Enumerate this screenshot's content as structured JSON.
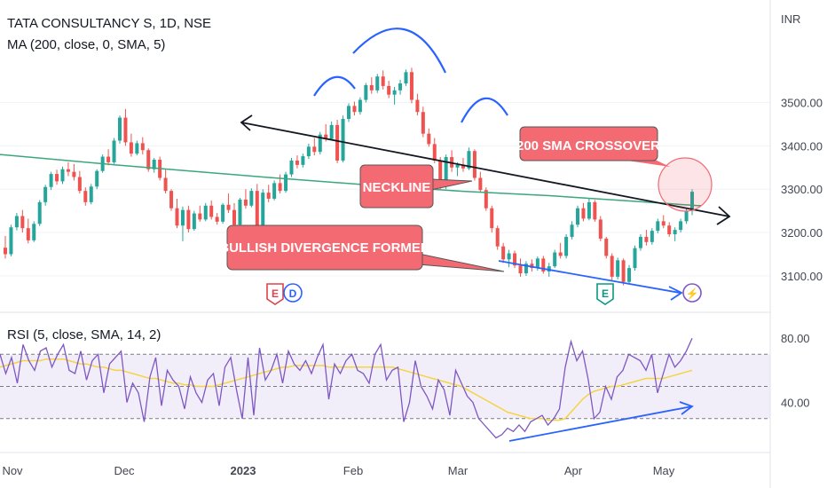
{
  "header": {
    "title": "TATA CONSULTANCY S, 1D, NSE",
    "ma_label": "MA (200, close, 0, SMA, 5)",
    "currency": "INR"
  },
  "rsi_panel": {
    "label": "RSI (5, close, SMA, 14, 2)"
  },
  "annotations": {
    "sma_crossover": "200 SMA CROSSOVER",
    "neckline": "NECKLINE",
    "bullish_divergence": "BULLISH DIVERGENCE FORMED"
  },
  "markers": [
    {
      "letter": "E",
      "color": "#e0424b",
      "index": 0
    },
    {
      "letter": "D",
      "color": "#2962ff",
      "index": 1
    },
    {
      "letter": "E",
      "color": "#089981",
      "index": 2
    },
    {
      "letter": "⚡",
      "color": "#7e57c2",
      "index": 3
    }
  ],
  "chart_data": [
    {
      "type": "candlestick",
      "title": "TATA CONSULTANCY S, 1D, NSE",
      "ylabel": "INR",
      "ylim": [
        3020,
        3720
      ],
      "y_ticks": [
        3100,
        3200,
        3300,
        3400,
        3500
      ],
      "y_tick_labels": [
        "3100.00",
        "3200.00",
        "3300.00",
        "3400.00",
        "3500.00"
      ],
      "x_tick_labels": [
        "Nov",
        "Dec",
        "2023",
        "Feb",
        "Mar",
        "Apr",
        "May"
      ],
      "candles": [
        [
          3165,
          3192,
          3140,
          3150
        ],
        [
          3150,
          3218,
          3145,
          3212
        ],
        [
          3212,
          3245,
          3205,
          3238
        ],
        [
          3238,
          3252,
          3200,
          3210
        ],
        [
          3210,
          3232,
          3175,
          3182
        ],
        [
          3182,
          3226,
          3178,
          3220
        ],
        [
          3220,
          3275,
          3215,
          3270
        ],
        [
          3270,
          3310,
          3262,
          3305
        ],
        [
          3305,
          3340,
          3298,
          3335
        ],
        [
          3335,
          3345,
          3310,
          3318
        ],
        [
          3318,
          3352,
          3312,
          3346
        ],
        [
          3346,
          3362,
          3330,
          3340
        ],
        [
          3340,
          3358,
          3320,
          3328
        ],
        [
          3328,
          3342,
          3290,
          3296
        ],
        [
          3296,
          3304,
          3262,
          3270
        ],
        [
          3270,
          3312,
          3265,
          3306
        ],
        [
          3306,
          3346,
          3300,
          3342
        ],
        [
          3342,
          3380,
          3338,
          3375
        ],
        [
          3375,
          3392,
          3355,
          3362
        ],
        [
          3362,
          3418,
          3358,
          3412
        ],
        [
          3412,
          3470,
          3405,
          3465
        ],
        [
          3465,
          3485,
          3400,
          3408
        ],
        [
          3408,
          3428,
          3375,
          3382
        ],
        [
          3382,
          3412,
          3378,
          3406
        ],
        [
          3406,
          3420,
          3380,
          3390
        ],
        [
          3390,
          3394,
          3340,
          3346
        ],
        [
          3346,
          3372,
          3338,
          3368
        ],
        [
          3368,
          3375,
          3320,
          3326
        ],
        [
          3326,
          3345,
          3290,
          3296
        ],
        [
          3296,
          3300,
          3250,
          3256
        ],
        [
          3256,
          3278,
          3210,
          3216
        ],
        [
          3216,
          3260,
          3180,
          3252
        ],
        [
          3252,
          3262,
          3200,
          3208
        ],
        [
          3208,
          3250,
          3204,
          3244
        ],
        [
          3244,
          3262,
          3225,
          3230
        ],
        [
          3230,
          3268,
          3226,
          3262
        ],
        [
          3262,
          3274,
          3230,
          3236
        ],
        [
          3236,
          3245,
          3218,
          3225
        ],
        [
          3225,
          3268,
          3220,
          3264
        ],
        [
          3264,
          3290,
          3245,
          3252
        ],
        [
          3252,
          3268,
          3212,
          3218
        ],
        [
          3218,
          3280,
          3214,
          3276
        ],
        [
          3276,
          3300,
          3255,
          3262
        ],
        [
          3262,
          3302,
          3258,
          3296
        ],
        [
          3296,
          3312,
          3200,
          3206
        ],
        [
          3206,
          3300,
          3200,
          3292
        ],
        [
          3292,
          3310,
          3270,
          3278
        ],
        [
          3278,
          3320,
          3274,
          3314
        ],
        [
          3314,
          3334,
          3290,
          3296
        ],
        [
          3296,
          3340,
          3292,
          3334
        ],
        [
          3334,
          3372,
          3328,
          3366
        ],
        [
          3366,
          3378,
          3348,
          3356
        ],
        [
          3356,
          3382,
          3350,
          3376
        ],
        [
          3376,
          3405,
          3370,
          3398
        ],
        [
          3398,
          3418,
          3378,
          3386
        ],
        [
          3386,
          3432,
          3380,
          3426
        ],
        [
          3426,
          3450,
          3410,
          3416
        ],
        [
          3416,
          3456,
          3412,
          3448
        ],
        [
          3448,
          3460,
          3360,
          3366
        ],
        [
          3366,
          3470,
          3362,
          3462
        ],
        [
          3462,
          3498,
          3455,
          3492
        ],
        [
          3492,
          3502,
          3470,
          3478
        ],
        [
          3478,
          3512,
          3472,
          3506
        ],
        [
          3506,
          3545,
          3500,
          3540
        ],
        [
          3540,
          3558,
          3520,
          3528
        ],
        [
          3528,
          3566,
          3522,
          3560
        ],
        [
          3560,
          3574,
          3530,
          3538
        ],
        [
          3538,
          3550,
          3510,
          3518
        ],
        [
          3518,
          3536,
          3495,
          3528
        ],
        [
          3528,
          3552,
          3518,
          3544
        ],
        [
          3544,
          3576,
          3538,
          3570
        ],
        [
          3570,
          3580,
          3498,
          3506
        ],
        [
          3506,
          3520,
          3470,
          3478
        ],
        [
          3478,
          3490,
          3420,
          3428
        ],
        [
          3428,
          3440,
          3398,
          3404
        ],
        [
          3404,
          3418,
          3360,
          3366
        ],
        [
          3366,
          3374,
          3300,
          3306
        ],
        [
          3306,
          3380,
          3300,
          3374
        ],
        [
          3374,
          3390,
          3340,
          3350
        ],
        [
          3350,
          3362,
          3330,
          3356
        ],
        [
          3356,
          3372,
          3340,
          3348
        ],
        [
          3348,
          3396,
          3344,
          3388
        ],
        [
          3388,
          3392,
          3320,
          3326
        ],
        [
          3326,
          3340,
          3292,
          3298
        ],
        [
          3298,
          3304,
          3250,
          3256
        ],
        [
          3256,
          3262,
          3200,
          3210
        ],
        [
          3210,
          3216,
          3160,
          3168
        ],
        [
          3168,
          3176,
          3130,
          3138
        ],
        [
          3138,
          3160,
          3120,
          3152
        ],
        [
          3152,
          3158,
          3118,
          3124
        ],
        [
          3124,
          3140,
          3098,
          3106
        ],
        [
          3106,
          3134,
          3100,
          3128
        ],
        [
          3128,
          3138,
          3110,
          3118
        ],
        [
          3118,
          3145,
          3112,
          3140
        ],
        [
          3140,
          3146,
          3105,
          3110
        ],
        [
          3110,
          3130,
          3098,
          3122
        ],
        [
          3122,
          3160,
          3118,
          3154
        ],
        [
          3154,
          3176,
          3140,
          3146
        ],
        [
          3146,
          3196,
          3140,
          3190
        ],
        [
          3190,
          3226,
          3184,
          3218
        ],
        [
          3218,
          3262,
          3212,
          3256
        ],
        [
          3256,
          3268,
          3226,
          3232
        ],
        [
          3232,
          3278,
          3228,
          3270
        ],
        [
          3270,
          3275,
          3225,
          3230
        ],
        [
          3230,
          3238,
          3180,
          3186
        ],
        [
          3186,
          3190,
          3140,
          3146
        ],
        [
          3146,
          3152,
          3090,
          3098
        ],
        [
          3098,
          3142,
          3092,
          3136
        ],
        [
          3136,
          3140,
          3078,
          3086
        ],
        [
          3086,
          3125,
          3080,
          3118
        ],
        [
          3118,
          3170,
          3112,
          3164
        ],
        [
          3164,
          3196,
          3158,
          3190
        ],
        [
          3190,
          3206,
          3170,
          3178
        ],
        [
          3178,
          3210,
          3172,
          3204
        ],
        [
          3204,
          3232,
          3198,
          3226
        ],
        [
          3226,
          3240,
          3210,
          3216
        ],
        [
          3216,
          3224,
          3190,
          3196
        ],
        [
          3196,
          3212,
          3180,
          3206
        ],
        [
          3206,
          3232,
          3200,
          3226
        ],
        [
          3226,
          3256,
          3220,
          3250
        ],
        [
          3250,
          3300,
          3240,
          3294
        ]
      ],
      "ma200": {
        "name": "MA (200, close, 0, SMA, 5)",
        "points": [
          [
            0,
            3380
          ],
          [
            20,
            3355
          ],
          [
            45,
            3328
          ],
          [
            65,
            3308
          ],
          [
            80,
            3295
          ],
          [
            95,
            3285
          ],
          [
            110,
            3272
          ],
          [
            121,
            3262
          ]
        ]
      }
    },
    {
      "type": "line",
      "title": "RSI (5, close, SMA, 14, 2)",
      "ylim": [
        10,
        95
      ],
      "y_ticks": [
        40,
        80
      ],
      "y_tick_labels": [
        "40.00",
        "80.00"
      ],
      "band": [
        30,
        70
      ],
      "midline": 50,
      "rsi": [
        70,
        58,
        68,
        52,
        76,
        66,
        60,
        72,
        74,
        62,
        70,
        76,
        60,
        58,
        72,
        54,
        66,
        70,
        46,
        64,
        68,
        72,
        40,
        52,
        46,
        28,
        56,
        68,
        38,
        60,
        54,
        50,
        36,
        56,
        46,
        40,
        54,
        58,
        38,
        62,
        68,
        48,
        30,
        68,
        32,
        74,
        54,
        60,
        70,
        52,
        72,
        64,
        60,
        66,
        58,
        68,
        76,
        42,
        64,
        58,
        66,
        70,
        60,
        58,
        52,
        70,
        76,
        54,
        60,
        62,
        28,
        40,
        66,
        50,
        44,
        36,
        54,
        48,
        32,
        60,
        52,
        44,
        40,
        30,
        26,
        22,
        18,
        20,
        24,
        22,
        26,
        22,
        28,
        30,
        32,
        26,
        30,
        36,
        62,
        78,
        66,
        72,
        54,
        30,
        34,
        50,
        42,
        56,
        60,
        70,
        68,
        66,
        60,
        70,
        46,
        58,
        70,
        62,
        66,
        72,
        80
      ],
      "rsi_ma": [
        62,
        63,
        64,
        65,
        66,
        66,
        66,
        66,
        67,
        67,
        67,
        67,
        66,
        65,
        64,
        64,
        63,
        62,
        62,
        61,
        60,
        60,
        59,
        58,
        57,
        56,
        55,
        55,
        54,
        53,
        52,
        52,
        51,
        51,
        50,
        50,
        50,
        50,
        51,
        52,
        53,
        54,
        55,
        56,
        57,
        58,
        59,
        60,
        61,
        62,
        62,
        63,
        63,
        63,
        63,
        63,
        63,
        62,
        62,
        62,
        62,
        62,
        62,
        62,
        62,
        62,
        62,
        62,
        62,
        61,
        60,
        59,
        58,
        57,
        56,
        55,
        54,
        53,
        52,
        51,
        50,
        48,
        46,
        44,
        42,
        40,
        38,
        36,
        34,
        33,
        32,
        31,
        30,
        30,
        30,
        29,
        29,
        29,
        30,
        34,
        38,
        42,
        45,
        47,
        48,
        49,
        50,
        50,
        51,
        52,
        53,
        54,
        55,
        55,
        55,
        55,
        56,
        57,
        58,
        59,
        60
      ]
    }
  ]
}
